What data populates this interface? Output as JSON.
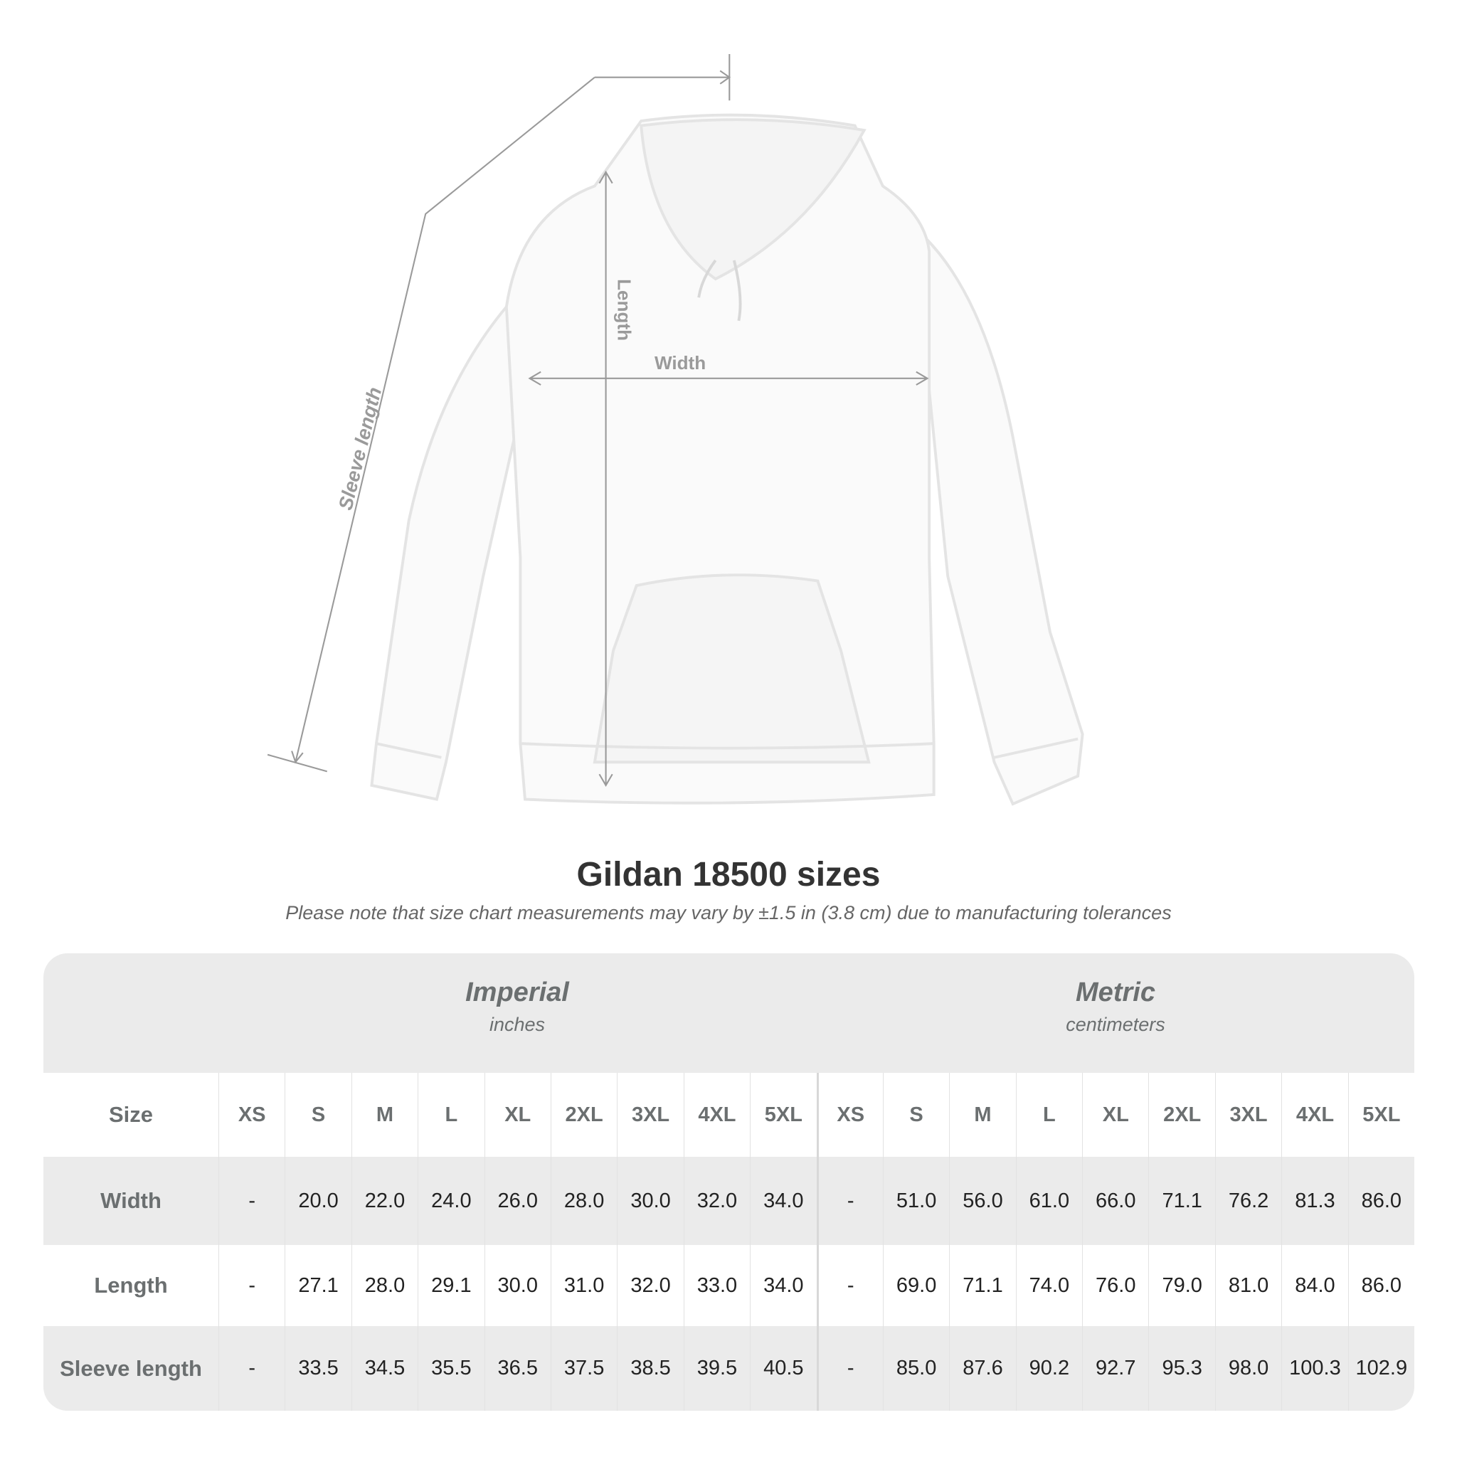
{
  "illustration": {
    "labels": {
      "sleeve": "Sleeve length",
      "length": "Length",
      "width": "Width"
    }
  },
  "title": "Gildan 18500 sizes",
  "note": "Please note that size chart measurements may vary by ±1.5 in (3.8 cm) due to manufacturing tolerances",
  "table": {
    "imperial": {
      "title": "Imperial",
      "unit": "inches"
    },
    "metric": {
      "title": "Metric",
      "unit": "centimeters"
    },
    "size_label": "Size",
    "sizes": [
      "XS",
      "S",
      "M",
      "L",
      "XL",
      "2XL",
      "3XL",
      "4XL",
      "5XL"
    ],
    "rows": [
      {
        "label": "Width",
        "imperial": [
          "-",
          "20.0",
          "22.0",
          "24.0",
          "26.0",
          "28.0",
          "30.0",
          "32.0",
          "34.0"
        ],
        "metric": [
          "-",
          "51.0",
          "56.0",
          "61.0",
          "66.0",
          "71.1",
          "76.2",
          "81.3",
          "86.0"
        ]
      },
      {
        "label": "Length",
        "imperial": [
          "-",
          "27.1",
          "28.0",
          "29.1",
          "30.0",
          "31.0",
          "32.0",
          "33.0",
          "34.0"
        ],
        "metric": [
          "-",
          "69.0",
          "71.1",
          "74.0",
          "76.0",
          "79.0",
          "81.0",
          "84.0",
          "86.0"
        ]
      },
      {
        "label": "Sleeve length",
        "imperial": [
          "-",
          "33.5",
          "34.5",
          "35.5",
          "36.5",
          "37.5",
          "38.5",
          "39.5",
          "40.5"
        ],
        "metric": [
          "-",
          "85.0",
          "87.6",
          "90.2",
          "92.7",
          "95.3",
          "98.0",
          "100.3",
          "102.9"
        ]
      }
    ]
  },
  "colors": {
    "band": "#ebebeb",
    "label": "#6b6f70",
    "measure_line": "#9a9a9a"
  }
}
